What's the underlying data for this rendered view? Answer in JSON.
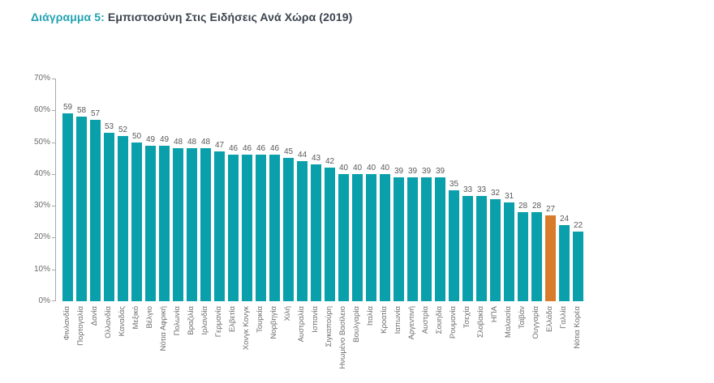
{
  "title": {
    "prefix": "Διάγραμμα 5:",
    "text": " Εμπιστοσύνη Στις Ειδήσεις Ανά Χώρα (2019)"
  },
  "colors": {
    "bar_teal": "#09a0ac",
    "bar_highlight_orange": "#d87b2a",
    "title_accent": "#24a3b2",
    "title_text": "#3b434e",
    "axis_line": "#a9a9a9",
    "label_gray": "#6b6b6b",
    "value_gray": "#595959",
    "background": "#ffffff"
  },
  "chart_data": {
    "type": "bar",
    "title": "Διάγραμμα 5: Εμπιστοσύνη Στις Ειδήσεις Ανά Χώρα (2019)",
    "xlabel": "",
    "ylabel": "",
    "unit": "%",
    "ylim": [
      0,
      70
    ],
    "yticks": [
      "0%",
      "10%",
      "20%",
      "30%",
      "40%",
      "50%",
      "60%",
      "70%"
    ],
    "grid": false,
    "legend": "none",
    "value_labels_shown": true,
    "bar_color": "#09a0ac",
    "highlight_country": "Ελλάδα",
    "highlight_color": "#d87b2a",
    "categories": [
      "Φινλανδία",
      "Πορτογαλία",
      "Δανία",
      "Ολλανδία",
      "Καναδάς",
      "Μεξικό",
      "Βέλγιο",
      "Νότια Αφρική",
      "Πολωνία",
      "Βραζιλία",
      "Ιρλανδία",
      "Γερμανία",
      "Ελβετία",
      "Χονγκ Κονγκ",
      "Τουρκία",
      "Νορβηγία",
      "Χιλή",
      "Αυστραλία",
      "Ισπανία",
      "Σιγκαπούρη",
      "Ηνωμένο Βασίλειο",
      "Βουλγαρία",
      "Ιταλία",
      "Κροατία",
      "Ιαπωνία",
      "Αργεντινή",
      "Αυστρία",
      "Σουηδία",
      "Ρουμανία",
      "Τσεχία",
      "Σλοβακία",
      "ΗΠΑ",
      "Μαλαισία",
      "Ταϊβάν",
      "Ουγγαρία",
      "Ελλάδα",
      "Γαλλία",
      "Νότια Κορέα"
    ],
    "values": [
      59,
      58,
      57,
      53,
      52,
      50,
      49,
      49,
      48,
      48,
      48,
      47,
      46,
      46,
      46,
      46,
      45,
      44,
      43,
      42,
      40,
      40,
      40,
      40,
      39,
      39,
      39,
      39,
      35,
      33,
      33,
      32,
      31,
      28,
      28,
      27,
      24,
      22
    ]
  }
}
